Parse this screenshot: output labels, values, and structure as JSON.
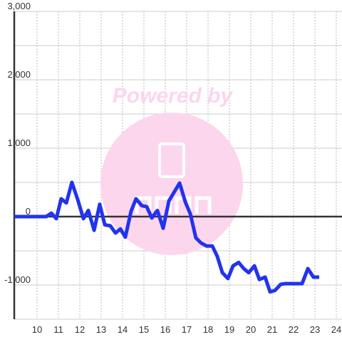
{
  "chart_data": {
    "type": "line",
    "watermark": "Powered by",
    "x": [
      8.93,
      10.43,
      10.67,
      10.9,
      11.13,
      11.37,
      11.63,
      11.9,
      12.17,
      12.4,
      12.67,
      12.93,
      13.17,
      13.43,
      13.67,
      13.9,
      14.13,
      14.4,
      14.63,
      14.9,
      15.13,
      15.37,
      15.63,
      15.9,
      16.17,
      16.4,
      16.67,
      16.93,
      17.17,
      17.43,
      17.67,
      17.93,
      18.2,
      18.43,
      18.67,
      18.93,
      19.17,
      19.43,
      19.67,
      19.9,
      20.17,
      20.4,
      20.67,
      20.9,
      21.13,
      21.4,
      21.63,
      22.4,
      22.67,
      22.93,
      23.2
    ],
    "values": [
      0,
      0,
      50,
      -30,
      260,
      200,
      500,
      250,
      -30,
      90,
      -200,
      180,
      -120,
      -135,
      -240,
      -180,
      -300,
      80,
      260,
      160,
      145,
      -20,
      90,
      -170,
      230,
      350,
      490,
      220,
      40,
      -310,
      -385,
      -430,
      -430,
      -580,
      -820,
      -905,
      -720,
      -670,
      -760,
      -820,
      -720,
      -920,
      -885,
      -1100,
      -1080,
      -990,
      -980,
      -980,
      -760,
      -885,
      -885
    ],
    "color": "#2233ee",
    "xlim": [
      8.933,
      24.267
    ],
    "xticks": [
      10,
      11,
      12,
      13,
      14,
      15,
      16,
      17,
      18,
      19,
      20,
      21,
      22,
      23,
      24
    ],
    "ylim": [
      -1500,
      3000
    ],
    "yticks": [
      {
        "value": -1000,
        "label": "-1,000"
      },
      0,
      {
        "value": 1000,
        "label": "1,000"
      },
      {
        "value": 2000,
        "label": "2,000"
      },
      {
        "value": 3000,
        "label": "3,000"
      }
    ],
    "y_minor_ticks": [
      -1500,
      -500,
      500,
      1500,
      2500
    ],
    "grid": true
  }
}
